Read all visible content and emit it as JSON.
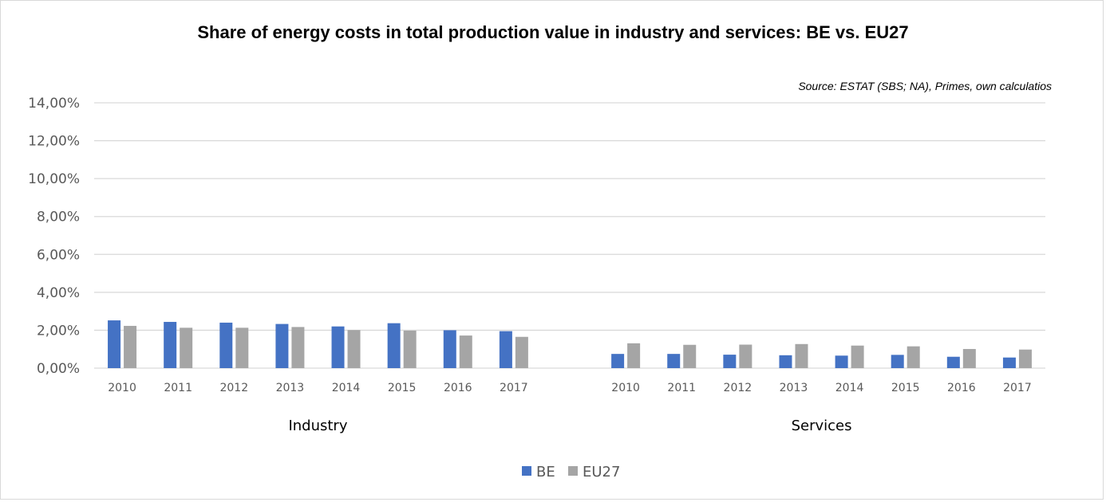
{
  "chart_data": {
    "type": "bar",
    "title": "Share of energy costs in total production value in industry and services: BE vs. EU27",
    "annotation": "Source: ESTAT (SBS; NA), Primes, own calculatios",
    "xlabel": "",
    "ylabel": "",
    "ylim": [
      0,
      14
    ],
    "y_ticks": [
      "0,00%",
      "2,00%",
      "4,00%",
      "6,00%",
      "8,00%",
      "10,00%",
      "12,00%",
      "14,00%"
    ],
    "y_tick_values": [
      0,
      2,
      4,
      6,
      8,
      10,
      12,
      14
    ],
    "grid": true,
    "legend_position": "bottom",
    "groups": [
      {
        "name": "Industry",
        "categories": [
          "2010",
          "2011",
          "2012",
          "2013",
          "2014",
          "2015",
          "2016",
          "2017"
        ],
        "series": [
          {
            "name": "BE",
            "values": [
              2.52,
              2.44,
              2.4,
              2.33,
              2.2,
              2.37,
              2.0,
              1.95
            ]
          },
          {
            "name": "EU27",
            "values": [
              2.23,
              2.13,
              2.13,
              2.17,
              2.01,
              1.98,
              1.72,
              1.65
            ]
          }
        ]
      },
      {
        "name": "Services",
        "categories": [
          "2010",
          "2011",
          "2012",
          "2013",
          "2014",
          "2015",
          "2016",
          "2017"
        ],
        "series": [
          {
            "name": "BE",
            "values": [
              0.75,
              0.75,
              0.71,
              0.68,
              0.66,
              0.7,
              0.6,
              0.56
            ]
          },
          {
            "name": "EU27",
            "values": [
              1.31,
              1.23,
              1.24,
              1.27,
              1.19,
              1.15,
              1.01,
              0.98
            ]
          }
        ]
      }
    ],
    "legend": [
      {
        "name": "BE",
        "color": "#4472c4"
      },
      {
        "name": "EU27",
        "color": "#a5a5a5"
      }
    ],
    "units": "% of total production value"
  }
}
